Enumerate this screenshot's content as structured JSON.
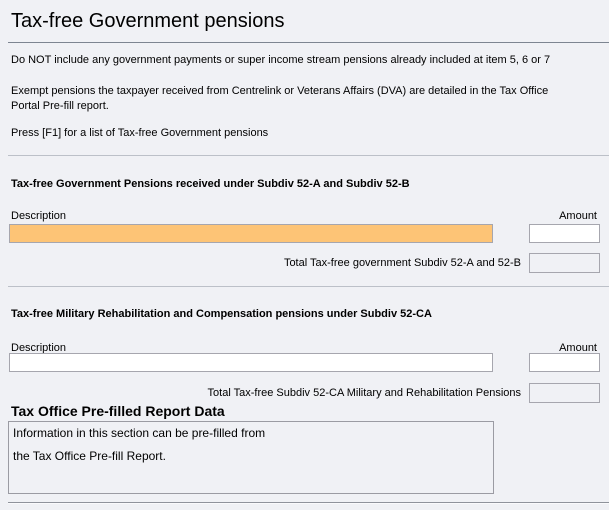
{
  "window": {
    "title": "Tax-free Government pensions"
  },
  "notes": {
    "line1": "Do NOT include any government payments or super income stream pensions already included at item 5, 6 or 7",
    "line2a": "Exempt pensions the taxpayer received from Centrelink or Veterans Affairs (DVA) are detailed in the Tax Office",
    "line2b": "Portal Pre-fill report.",
    "line3": "Press [F1] for a list of Tax-free Government pensions"
  },
  "section_52ab": {
    "heading": "Tax-free Government Pensions received under Subdiv 52-A and Subdiv 52-B",
    "description_label": "Description",
    "amount_label": "Amount",
    "description_value": "",
    "amount_value": "",
    "total_label": "Total Tax-free government Subdiv 52-A and 52-B",
    "total_value": ""
  },
  "section_52ca": {
    "heading": "Tax-free Military Rehabilitation and Compensation pensions under Subdiv 52-CA",
    "description_label": "Description",
    "amount_label": "Amount",
    "description_value": "",
    "amount_value": "",
    "total_label": "Total Tax-free Subdiv 52-CA Military and Rehabilitation Pensions",
    "total_value": ""
  },
  "prefill": {
    "heading": "Tax Office Pre-filled Report Data",
    "line1": "Information in this section can be pre-filled from",
    "line2": "the Tax Office Pre-fill Report."
  },
  "colors": {
    "page_background": "#F0F1F5",
    "highlight_field": "#FDC476",
    "field_border": "#A6A6AE"
  }
}
